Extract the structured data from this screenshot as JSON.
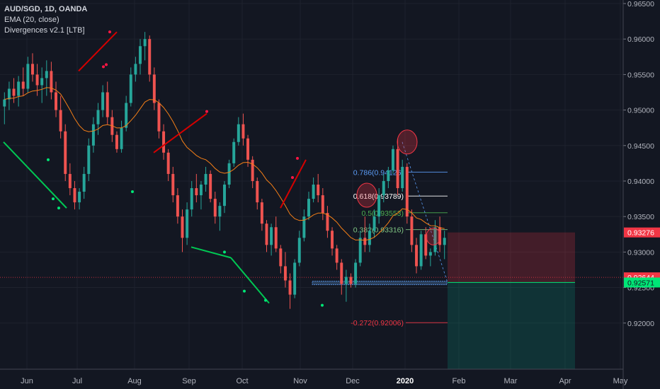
{
  "legend": {
    "symbol": "AUD/SGD, 1D, OANDA",
    "ema": "EMA (20, close)",
    "indicator": "Divergences v2.1 [LTB]"
  },
  "chart_data": {
    "type": "candlestick",
    "y_axis": {
      "ticks": [
        0.965,
        0.96,
        0.955,
        0.95,
        0.945,
        0.94,
        0.935,
        0.93,
        0.925,
        0.92
      ],
      "tick_labels": [
        "0.96500",
        "0.96000",
        "0.95500",
        "0.95000",
        "0.94500",
        "0.94000",
        "0.93500",
        "0.93000",
        "0.92500",
        "0.92000"
      ],
      "range": [
        0.9135,
        0.9655
      ]
    },
    "x_axis": {
      "labels": [
        "Jun",
        "Jul",
        "Aug",
        "Sep",
        "Oct",
        "Nov",
        "Dec",
        "2020",
        "Feb",
        "Mar",
        "Apr",
        "May"
      ],
      "bold": [
        "2020"
      ]
    },
    "price_badges": [
      {
        "label": "0.93276",
        "value": 0.93276,
        "color": "#f23645"
      },
      {
        "label": "0.92644",
        "value": 0.92644,
        "color": "#f23645"
      },
      {
        "label": "0.92571",
        "value": 0.92571,
        "color": "#00e676"
      }
    ],
    "fib_levels": [
      {
        "label": "0.786(0.94126)",
        "value": 0.94126,
        "color": "#5b9cf6"
      },
      {
        "label": "0.618(0.93789)",
        "value": 0.93789,
        "color": "#ffffff"
      },
      {
        "label": "0.5(0.93553)",
        "value": 0.93553,
        "color": "#4caf50"
      },
      {
        "label": "0.382(0.93316)",
        "value": 0.93316,
        "color": "#81c784"
      },
      {
        "label": "-0.272(0.92006)",
        "value": 0.92006,
        "color": "#f23645"
      }
    ],
    "position": {
      "entry": 0.92571,
      "stop": 0.93276,
      "target": 0.9135
    },
    "candles": [
      [
        0.9505,
        0.9525,
        0.948,
        0.9515
      ],
      [
        0.9515,
        0.954,
        0.95,
        0.953
      ],
      [
        0.953,
        0.9545,
        0.951,
        0.952
      ],
      [
        0.952,
        0.9548,
        0.9505,
        0.954
      ],
      [
        0.954,
        0.956,
        0.952,
        0.953
      ],
      [
        0.953,
        0.9575,
        0.9525,
        0.9565
      ],
      [
        0.9565,
        0.958,
        0.954,
        0.955
      ],
      [
        0.955,
        0.9565,
        0.952,
        0.9535
      ],
      [
        0.9535,
        0.956,
        0.951,
        0.9545
      ],
      [
        0.9545,
        0.957,
        0.952,
        0.9555
      ],
      [
        0.9555,
        0.9568,
        0.9515,
        0.9525
      ],
      [
        0.9525,
        0.954,
        0.949,
        0.95
      ],
      [
        0.95,
        0.952,
        0.946,
        0.947
      ],
      [
        0.947,
        0.948,
        0.94,
        0.941
      ],
      [
        0.941,
        0.9425,
        0.938,
        0.939
      ],
      [
        0.939,
        0.94,
        0.936,
        0.937
      ],
      [
        0.937,
        0.939,
        0.936,
        0.9385
      ],
      [
        0.9385,
        0.942,
        0.9375,
        0.941
      ],
      [
        0.941,
        0.946,
        0.94,
        0.945
      ],
      [
        0.945,
        0.949,
        0.944,
        0.948
      ],
      [
        0.948,
        0.951,
        0.9465,
        0.95
      ],
      [
        0.95,
        0.9535,
        0.949,
        0.9525
      ],
      [
        0.9525,
        0.954,
        0.948,
        0.949
      ],
      [
        0.949,
        0.95,
        0.9455,
        0.9465
      ],
      [
        0.9465,
        0.947,
        0.944,
        0.9445
      ],
      [
        0.9445,
        0.9485,
        0.944,
        0.9475
      ],
      [
        0.9475,
        0.952,
        0.947,
        0.951
      ],
      [
        0.951,
        0.956,
        0.9505,
        0.955
      ],
      [
        0.955,
        0.9575,
        0.954,
        0.9565
      ],
      [
        0.9565,
        0.96,
        0.955,
        0.959
      ],
      [
        0.959,
        0.961,
        0.957,
        0.96
      ],
      [
        0.96,
        0.9605,
        0.954,
        0.955
      ],
      [
        0.955,
        0.956,
        0.95,
        0.951
      ],
      [
        0.951,
        0.9515,
        0.946,
        0.947
      ],
      [
        0.947,
        0.948,
        0.943,
        0.944
      ],
      [
        0.944,
        0.9445,
        0.94,
        0.941
      ],
      [
        0.941,
        0.942,
        0.937,
        0.938
      ],
      [
        0.938,
        0.939,
        0.934,
        0.935
      ],
      [
        0.935,
        0.936,
        0.93,
        0.932
      ],
      [
        0.932,
        0.937,
        0.931,
        0.936
      ],
      [
        0.936,
        0.94,
        0.935,
        0.939
      ],
      [
        0.939,
        0.941,
        0.937,
        0.938
      ],
      [
        0.938,
        0.94,
        0.936,
        0.9395
      ],
      [
        0.9395,
        0.942,
        0.9385,
        0.941
      ],
      [
        0.941,
        0.9415,
        0.937,
        0.9375
      ],
      [
        0.9375,
        0.9385,
        0.934,
        0.935
      ],
      [
        0.935,
        0.937,
        0.933,
        0.9365
      ],
      [
        0.9365,
        0.94,
        0.9355,
        0.9395
      ],
      [
        0.9395,
        0.943,
        0.939,
        0.9425
      ],
      [
        0.9425,
        0.946,
        0.942,
        0.9455
      ],
      [
        0.9455,
        0.949,
        0.945,
        0.948
      ],
      [
        0.948,
        0.9495,
        0.945,
        0.946
      ],
      [
        0.946,
        0.9465,
        0.942,
        0.943
      ],
      [
        0.943,
        0.9435,
        0.939,
        0.94
      ],
      [
        0.94,
        0.9405,
        0.936,
        0.937
      ],
      [
        0.937,
        0.9375,
        0.933,
        0.934
      ],
      [
        0.934,
        0.9345,
        0.93,
        0.931
      ],
      [
        0.931,
        0.934,
        0.9295,
        0.9335
      ],
      [
        0.9335,
        0.935,
        0.93,
        0.9305
      ],
      [
        0.9305,
        0.931,
        0.927,
        0.928
      ],
      [
        0.928,
        0.93,
        0.925,
        0.926
      ],
      [
        0.926,
        0.927,
        0.922,
        0.924
      ],
      [
        0.924,
        0.929,
        0.9235,
        0.9285
      ],
      [
        0.9285,
        0.933,
        0.928,
        0.932
      ],
      [
        0.932,
        0.936,
        0.9315,
        0.935
      ],
      [
        0.935,
        0.9385,
        0.9345,
        0.9375
      ],
      [
        0.9375,
        0.9405,
        0.937,
        0.9395
      ],
      [
        0.9395,
        0.941,
        0.937,
        0.938
      ],
      [
        0.938,
        0.939,
        0.9345,
        0.9355
      ],
      [
        0.9355,
        0.9365,
        0.932,
        0.933
      ],
      [
        0.933,
        0.9335,
        0.9295,
        0.9305
      ],
      [
        0.9305,
        0.931,
        0.9275,
        0.9285
      ],
      [
        0.9285,
        0.929,
        0.924,
        0.9255
      ],
      [
        0.9255,
        0.9275,
        0.923,
        0.9265
      ],
      [
        0.9265,
        0.927,
        0.925,
        0.9255
      ],
      [
        0.9255,
        0.929,
        0.925,
        0.9285
      ],
      [
        0.9285,
        0.933,
        0.928,
        0.932
      ],
      [
        0.932,
        0.935,
        0.93,
        0.931
      ],
      [
        0.931,
        0.934,
        0.93,
        0.933
      ],
      [
        0.933,
        0.936,
        0.932,
        0.935
      ],
      [
        0.935,
        0.939,
        0.934,
        0.938
      ],
      [
        0.938,
        0.941,
        0.937,
        0.94
      ],
      [
        0.94,
        0.942,
        0.939,
        0.9415
      ],
      [
        0.9415,
        0.945,
        0.941,
        0.9445
      ],
      [
        0.9445,
        0.946,
        0.938,
        0.939
      ],
      [
        0.939,
        0.943,
        0.9385,
        0.942
      ],
      [
        0.942,
        0.9425,
        0.934,
        0.935
      ],
      [
        0.935,
        0.936,
        0.93,
        0.931
      ],
      [
        0.931,
        0.932,
        0.927,
        0.928
      ],
      [
        0.928,
        0.933,
        0.9275,
        0.9325
      ],
      [
        0.9325,
        0.9335,
        0.929,
        0.9295
      ],
      [
        0.9295,
        0.9305,
        0.928,
        0.93
      ],
      [
        0.93,
        0.9345,
        0.9295,
        0.9335
      ],
      [
        0.9335,
        0.935,
        0.93,
        0.931
      ],
      [
        0.931,
        0.933,
        0.929,
        0.932
      ]
    ]
  }
}
